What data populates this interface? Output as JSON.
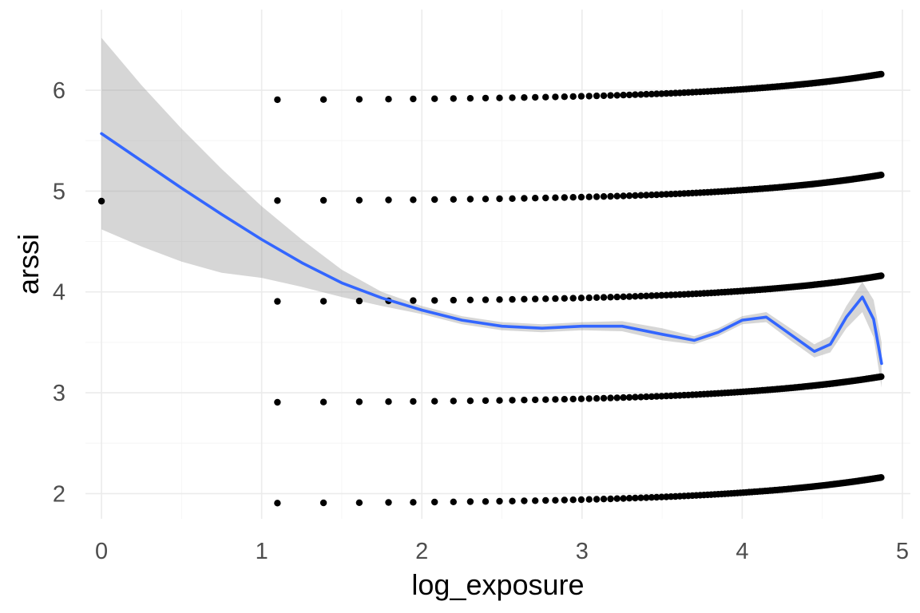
{
  "chart_data": {
    "type": "scatter",
    "title": "",
    "xlabel": "log_exposure",
    "ylabel": "arssi",
    "xlim": [
      -0.1,
      5.05
    ],
    "ylim": [
      1.75,
      6.8
    ],
    "x_ticks": [
      0,
      1,
      2,
      3,
      4,
      5
    ],
    "y_ticks": [
      2,
      3,
      4,
      5,
      6
    ],
    "x_tick_labels": [
      "0",
      "1",
      "2",
      "3",
      "4",
      "5"
    ],
    "y_tick_labels": [
      "2",
      "3",
      "4",
      "5",
      "6"
    ],
    "grid": true,
    "legend": "none",
    "point_color": "#000000",
    "scatter": {
      "description": "points at x = log(n), n = 1 or 3..130, y = level + 0.002*n",
      "levels": [
        2,
        3,
        4,
        5,
        6
      ],
      "single_point": {
        "x": 0,
        "y": 4.9
      },
      "n_start": 3,
      "n_end": 130,
      "slope_per_n": 0.002,
      "offset": -0.1
    },
    "smooth": {
      "method": "loess",
      "color": "#3366ff",
      "band_color": "#999999",
      "band_opacity": 0.4,
      "x": [
        0,
        0.25,
        0.5,
        0.75,
        1.0,
        1.25,
        1.5,
        1.75,
        2.0,
        2.25,
        2.5,
        2.75,
        3.0,
        3.25,
        3.5,
        3.7,
        3.85,
        4.0,
        4.15,
        4.3,
        4.45,
        4.55,
        4.65,
        4.75,
        4.82,
        4.87
      ],
      "y": [
        5.57,
        5.3,
        5.03,
        4.77,
        4.52,
        4.29,
        4.09,
        3.94,
        3.82,
        3.72,
        3.66,
        3.64,
        3.66,
        3.66,
        3.58,
        3.52,
        3.6,
        3.72,
        3.75,
        3.58,
        3.41,
        3.48,
        3.75,
        3.95,
        3.73,
        3.29
      ],
      "upper": [
        6.52,
        6.05,
        5.62,
        5.22,
        4.85,
        4.52,
        4.22,
        4.0,
        3.86,
        3.76,
        3.7,
        3.68,
        3.7,
        3.71,
        3.64,
        3.56,
        3.64,
        3.76,
        3.8,
        3.64,
        3.48,
        3.56,
        3.86,
        4.1,
        3.92,
        3.5
      ],
      "lower": [
        4.62,
        4.45,
        4.3,
        4.19,
        4.14,
        4.05,
        3.95,
        3.86,
        3.78,
        3.68,
        3.62,
        3.6,
        3.62,
        3.61,
        3.52,
        3.48,
        3.56,
        3.68,
        3.7,
        3.52,
        3.35,
        3.4,
        3.64,
        3.8,
        3.55,
        3.05
      ]
    }
  }
}
